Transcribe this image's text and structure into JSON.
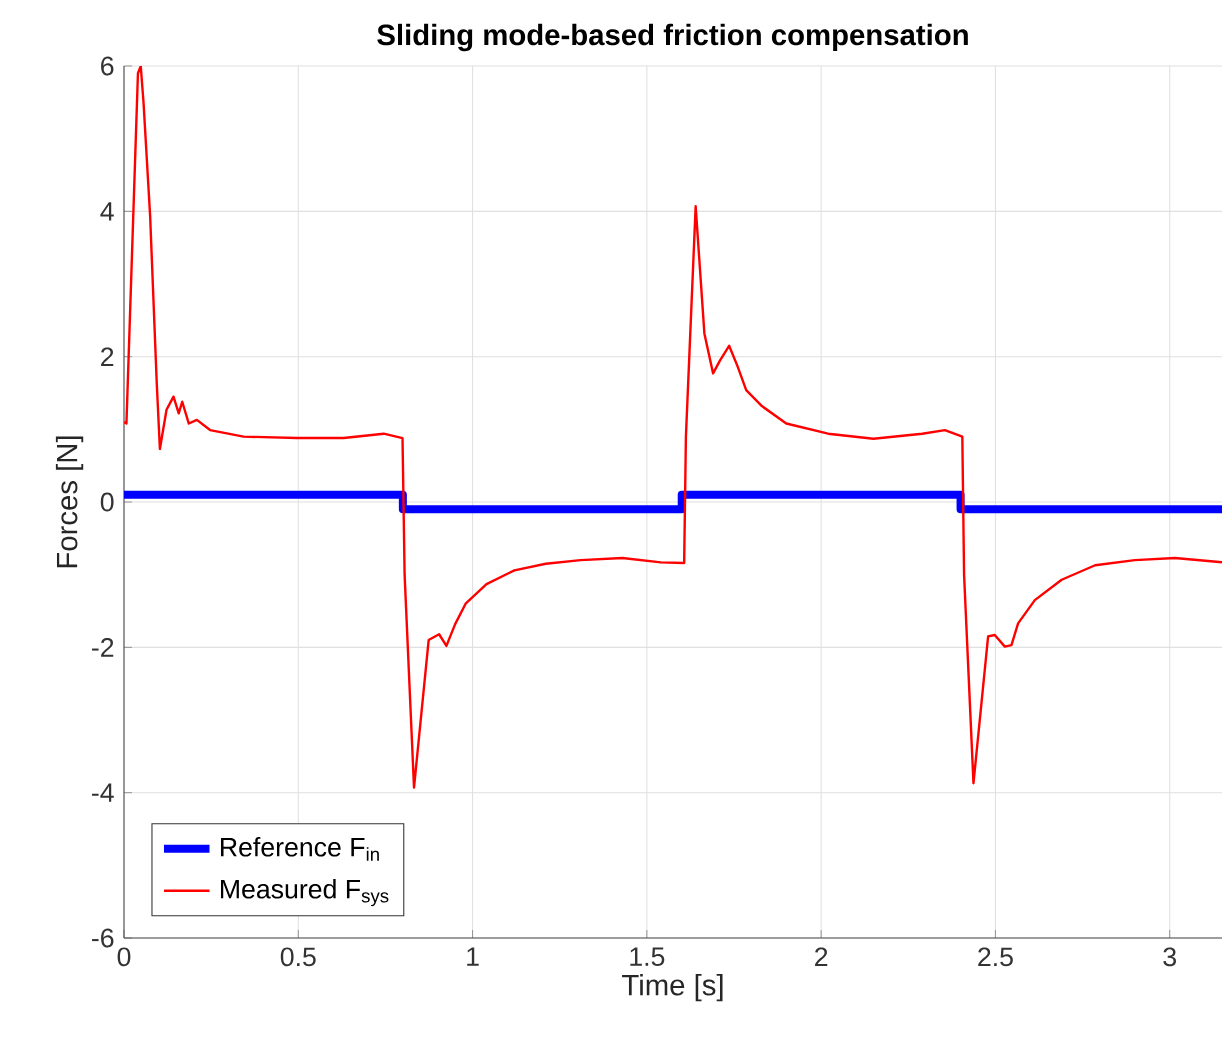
{
  "chart_data": {
    "type": "line",
    "title": "Sliding mode-based friction compensation",
    "xlabel": "Time [s]",
    "ylabel": "Forces [N]",
    "xlim": [
      0,
      3.15
    ],
    "ylim": [
      -6,
      6
    ],
    "xticks": [
      0,
      0.5,
      1,
      1.5,
      2,
      2.5,
      3
    ],
    "yticks": [
      -6,
      -4,
      -2,
      0,
      2,
      4,
      6
    ],
    "grid": true,
    "legend": "bottom left",
    "marker": "none",
    "line_style": "solid",
    "series": [
      {
        "name": "Reference F$_{in}$",
        "color": "#0000ff",
        "type": "step",
        "x": [
          0,
          0.8,
          1.6,
          2.4,
          3.15
        ],
        "values": [
          0.1,
          -0.1,
          0.1,
          -0.1,
          -0.1
        ]
      },
      {
        "name": "Measured F$_{sys}$",
        "color": "#ff0000",
        "x": [
          0,
          0.007,
          0.04,
          0.048,
          0.056,
          0.075,
          0.094,
          0.103,
          0.122,
          0.142,
          0.157,
          0.167,
          0.186,
          0.209,
          0.247,
          0.343,
          0.496,
          0.63,
          0.745,
          0.799,
          0.805,
          0.832,
          0.874,
          0.904,
          0.925,
          0.95,
          0.98,
          1.04,
          1.12,
          1.21,
          1.31,
          1.43,
          1.54,
          1.607,
          1.612,
          1.64,
          1.665,
          1.69,
          1.71,
          1.736,
          1.76,
          1.785,
          1.83,
          1.9,
          2.02,
          2.15,
          2.29,
          2.355,
          2.405,
          2.41,
          2.437,
          2.479,
          2.498,
          2.527,
          2.546,
          2.565,
          2.613,
          2.69,
          2.786,
          2.9,
          3.015,
          3.15
        ],
        "values": [
          1.1,
          1.08,
          5.9,
          6.0,
          5.5,
          3.93,
          1.63,
          0.73,
          1.27,
          1.45,
          1.22,
          1.38,
          1.08,
          1.13,
          0.99,
          0.9,
          0.88,
          0.88,
          0.94,
          0.88,
          -1.0,
          -3.93,
          -1.9,
          -1.82,
          -1.98,
          -1.68,
          -1.4,
          -1.13,
          -0.94,
          -0.85,
          -0.8,
          -0.77,
          -0.83,
          -0.84,
          0.9,
          4.07,
          2.32,
          1.77,
          1.95,
          2.15,
          1.87,
          1.54,
          1.32,
          1.08,
          0.94,
          0.87,
          0.94,
          0.99,
          0.9,
          -1.0,
          -3.87,
          -1.85,
          -1.83,
          -1.99,
          -1.97,
          -1.67,
          -1.35,
          -1.07,
          -0.87,
          -0.8,
          -0.77,
          -0.83
        ]
      }
    ]
  }
}
